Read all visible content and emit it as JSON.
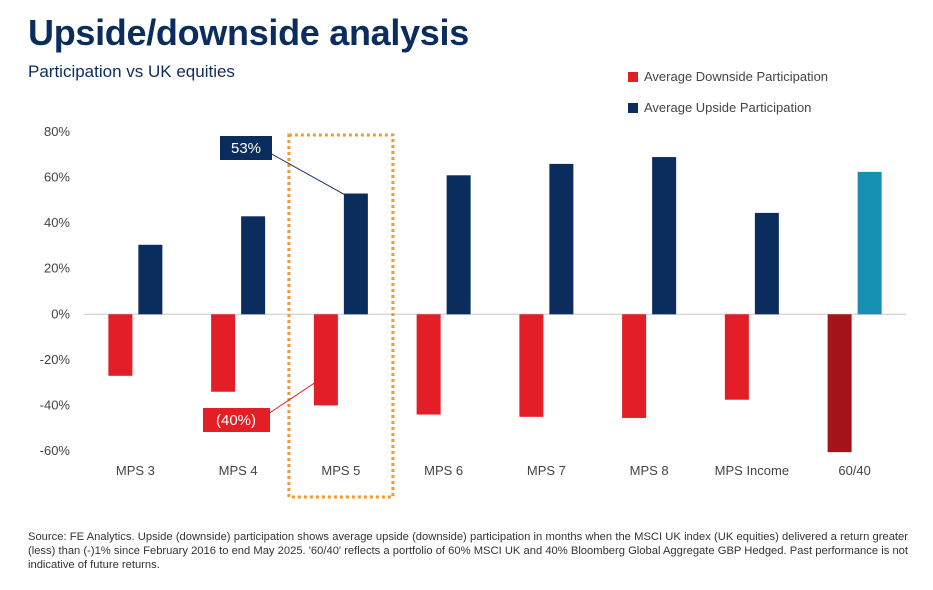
{
  "title": "Upside/downside analysis",
  "subtitle": "Participation vs UK equities",
  "legend": {
    "downside": "Average Downside Participation",
    "upside": "Average Upside Participation"
  },
  "colors": {
    "title": "#0a2d5e",
    "upside": "#0a2d5e",
    "downside": "#e31e26",
    "upside_6040": "#1590b0",
    "downside_6040": "#a5141b",
    "highlight_border": "#f39a2a"
  },
  "callouts": {
    "upside_label": "53%",
    "downside_label": "(40%)"
  },
  "source_text": "Source: FE Analytics. Upside (downside) participation shows average upside (downside) participation in months when the MSCI UK index (UK equities) delivered a return greater (less) than (-)1% since February 2016 to end May 2025. '60/40' reflects a portfolio of 60% MSCI UK and 40% Bloomberg Global Aggregate GBP Hedged. Past performance is not indicative of future returns.",
  "chart_data": {
    "type": "bar",
    "categories": [
      "MPS 3",
      "MPS 4",
      "MPS 5",
      "MPS 6",
      "MPS 7",
      "MPS 8",
      "MPS Income",
      "60/40"
    ],
    "series": [
      {
        "name": "Average Downside Participation",
        "values": [
          -27,
          -34,
          -40,
          -44,
          -45,
          -45.5,
          -37.5,
          -60.5
        ]
      },
      {
        "name": "Average Upside Participation",
        "values": [
          30.5,
          43,
          53,
          61,
          66,
          69,
          44.5,
          62.5
        ]
      }
    ],
    "yticks": [
      "80%",
      "60%",
      "40%",
      "20%",
      "0%",
      "-20%",
      "-40%",
      "-60%"
    ],
    "ylim": [
      -60,
      80
    ],
    "highlight_category": "MPS 5",
    "legend_position": "top-right"
  }
}
